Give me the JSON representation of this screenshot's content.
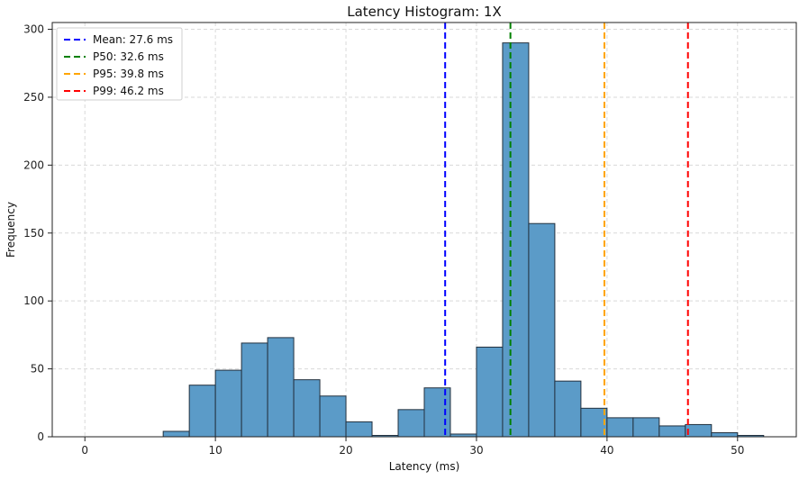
{
  "chart_data": {
    "type": "bar",
    "title": "Latency Histogram: 1X",
    "xlabel": "Latency (ms)",
    "ylabel": "Frequency",
    "xlim": [
      -2.5,
      54.5
    ],
    "ylim": [
      0,
      305
    ],
    "x_ticks": [
      0,
      10,
      20,
      30,
      40,
      50
    ],
    "y_ticks": [
      0,
      50,
      100,
      150,
      200,
      250,
      300
    ],
    "grid": true,
    "legend_position": "top-left",
    "bar_color": "#5b9bc8",
    "bar_edge_color": "#23313f",
    "bins": [
      {
        "x0": 0,
        "x1": 2,
        "count": 0
      },
      {
        "x0": 2,
        "x1": 4,
        "count": 0
      },
      {
        "x0": 4,
        "x1": 6,
        "count": 0
      },
      {
        "x0": 6,
        "x1": 8,
        "count": 4
      },
      {
        "x0": 8,
        "x1": 10,
        "count": 38
      },
      {
        "x0": 10,
        "x1": 12,
        "count": 49
      },
      {
        "x0": 12,
        "x1": 14,
        "count": 69
      },
      {
        "x0": 14,
        "x1": 16,
        "count": 73
      },
      {
        "x0": 16,
        "x1": 18,
        "count": 42
      },
      {
        "x0": 18,
        "x1": 20,
        "count": 30
      },
      {
        "x0": 20,
        "x1": 22,
        "count": 11
      },
      {
        "x0": 22,
        "x1": 24,
        "count": 1
      },
      {
        "x0": 24,
        "x1": 26,
        "count": 20
      },
      {
        "x0": 26,
        "x1": 28,
        "count": 36
      },
      {
        "x0": 28,
        "x1": 30,
        "count": 2
      },
      {
        "x0": 30,
        "x1": 32,
        "count": 66
      },
      {
        "x0": 32,
        "x1": 34,
        "count": 290
      },
      {
        "x0": 34,
        "x1": 36,
        "count": 157
      },
      {
        "x0": 36,
        "x1": 38,
        "count": 41
      },
      {
        "x0": 38,
        "x1": 40,
        "count": 21
      },
      {
        "x0": 40,
        "x1": 42,
        "count": 14
      },
      {
        "x0": 42,
        "x1": 44,
        "count": 14
      },
      {
        "x0": 44,
        "x1": 46,
        "count": 8
      },
      {
        "x0": 46,
        "x1": 48,
        "count": 9
      },
      {
        "x0": 48,
        "x1": 50,
        "count": 3
      },
      {
        "x0": 50,
        "x1": 52,
        "count": 1
      }
    ],
    "reference_lines": [
      {
        "label": "Mean: 27.6 ms",
        "x": 27.6,
        "color": "#0000ff"
      },
      {
        "label": "P50: 32.6 ms",
        "x": 32.6,
        "color": "#008000"
      },
      {
        "label": "P95: 39.8 ms",
        "x": 39.8,
        "color": "#ffa500"
      },
      {
        "label": "P99: 46.2 ms",
        "x": 46.2,
        "color": "#ff0000"
      }
    ]
  }
}
